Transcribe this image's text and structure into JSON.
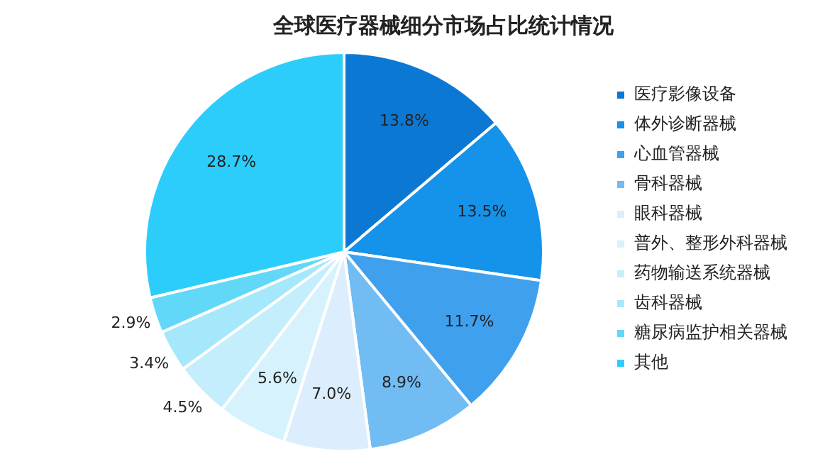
{
  "chart_data": {
    "type": "pie",
    "title": "全球医疗器械细分市场占比统计情况",
    "categories": [
      "医疗影像设备",
      "体外诊断器械",
      "心血管器械",
      "骨科器械",
      "眼科器械",
      "普外、整形外科器械",
      "药物输送系统器械",
      "齿科器械",
      "糖尿病监护相关器械",
      "其他"
    ],
    "values": [
      13.8,
      13.5,
      11.7,
      8.9,
      7.0,
      5.6,
      4.5,
      3.4,
      2.9,
      28.7
    ],
    "colors": [
      "#0b78d3",
      "#1592ea",
      "#3fa0ee",
      "#72bcf4",
      "#dceefd",
      "#d6f3fd",
      "#c4eefc",
      "#a6e8fb",
      "#62d8f8",
      "#2ccdfa"
    ],
    "value_labels": [
      "13.8%",
      "13.5%",
      "11.7%",
      "8.9%",
      "7.0%",
      "5.6%",
      "4.5%",
      "3.4%",
      "2.9%",
      "28.7%"
    ],
    "legend": "right"
  }
}
